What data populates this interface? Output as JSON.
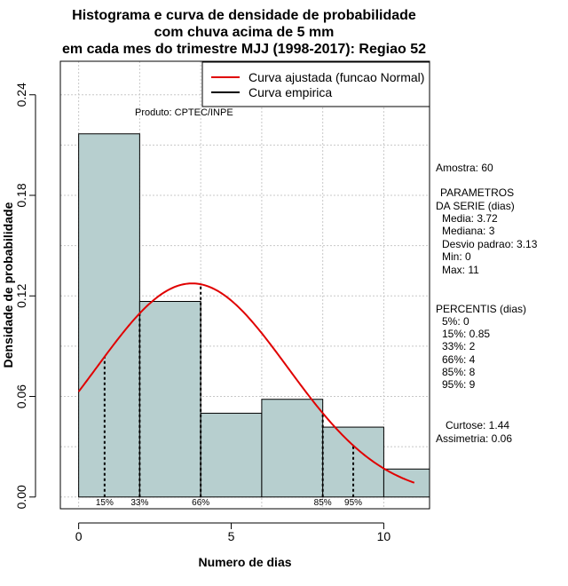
{
  "chart_data": {
    "type": "bar",
    "title_lines": [
      "Histograma e curva de densidade de probabilidade",
      "com chuva acima de 5 mm",
      "em cada mes do trimestre MJJ (1998-2017): Regiao 52"
    ],
    "xlabel": "Numero de dias",
    "ylabel": "Densidade de probabilidade",
    "xlim": [
      -0.6,
      11.5
    ],
    "ylim": [
      -0.007,
      0.26
    ],
    "xticks": [
      0,
      5,
      10
    ],
    "yticks": [
      0.0,
      0.06,
      0.12,
      0.18,
      0.24
    ],
    "ytick_labels": [
      "0.00",
      "0.06",
      "0.12",
      "0.18",
      "0.24"
    ],
    "grid": true,
    "bar_color": "#b7cfcf",
    "curve_color": "#e00000",
    "bins": [
      {
        "start": 0,
        "end": 2,
        "density": 0.2167
      },
      {
        "start": 2,
        "end": 4,
        "density": 0.1167
      },
      {
        "start": 4,
        "end": 6,
        "density": 0.05
      },
      {
        "start": 6,
        "end": 8,
        "density": 0.0583
      },
      {
        "start": 8,
        "end": 10,
        "density": 0.0417
      },
      {
        "start": 10,
        "end": 12,
        "density": 0.0167
      }
    ],
    "normal_fit": {
      "mean": 3.72,
      "sd": 3.13,
      "x_range": [
        0,
        11
      ]
    },
    "percentile_markers": [
      {
        "label": "15%",
        "x": 0.85
      },
      {
        "label": "33%",
        "x": 2
      },
      {
        "label": "66%",
        "x": 4
      },
      {
        "label": "85%",
        "x": 8
      },
      {
        "label": "95%",
        "x": 9
      }
    ],
    "legend": {
      "position": "top-right",
      "entries": [
        {
          "label": "Curva ajustada (funcao Normal)",
          "color": "#e00000"
        },
        {
          "label": "Curva empirica",
          "color": "#000000"
        }
      ]
    },
    "annotation": "Produto: CPTEC/INPE"
  },
  "stats": {
    "amostra": "Amostra: 60",
    "param_header1": "PARAMETROS",
    "param_header2": "DA SERIE (dias)",
    "media": "Media: 3.72",
    "mediana": "Mediana: 3",
    "desvio": "Desvio padrao: 3.13",
    "min": "Min: 0",
    "max": "Max: 11",
    "pct_header": "PERCENTIS (dias)",
    "p5": "5%: 0",
    "p15": "15%: 0.85",
    "p33": "33%: 2",
    "p66": "66%: 4",
    "p85": "85%: 8",
    "p95": "95%: 9",
    "curtose": "Curtose: 1.44",
    "assimetria": "Assimetria: 0.06"
  }
}
